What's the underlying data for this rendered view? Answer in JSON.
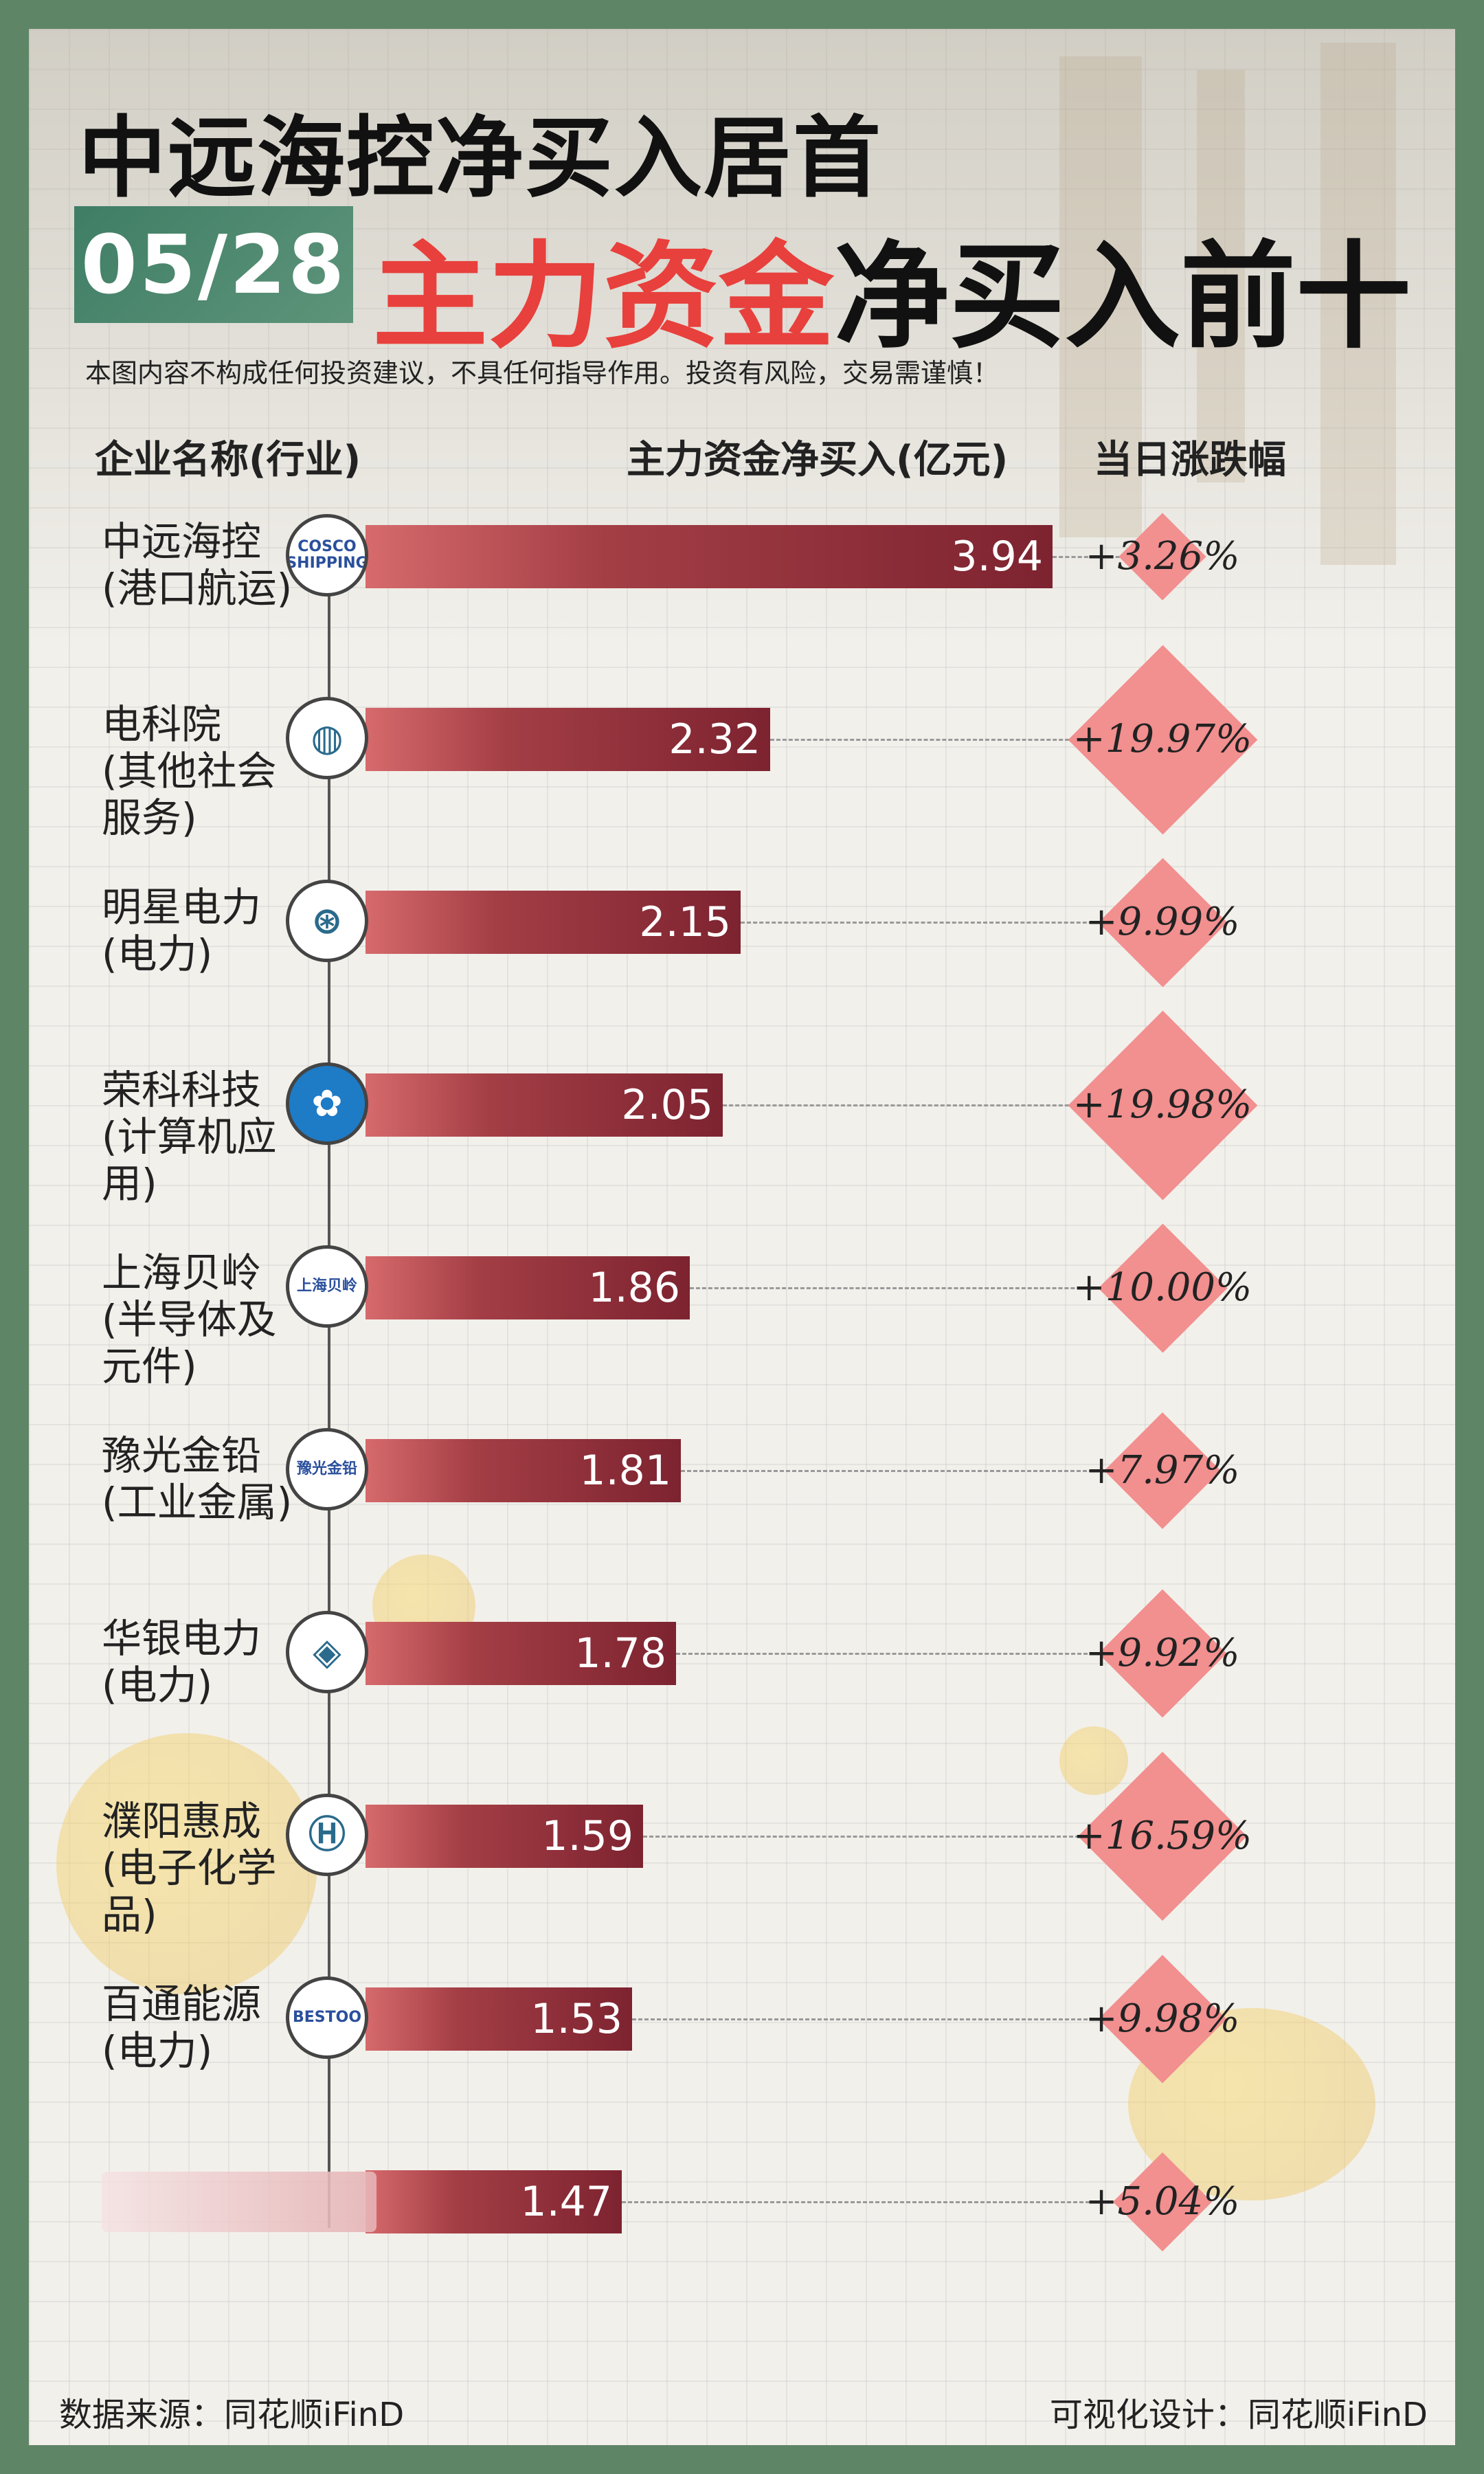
{
  "header": {
    "title_line1": "中远海控净买入居首",
    "date": "05/28",
    "title_line2_red": "主力资金",
    "title_line2_black": "净买入前十",
    "disclaimer": "本图内容不构成任何投资建议，不具任何指导作用。投资有风险，交易需谨慎！"
  },
  "columns": {
    "company": "企业名称(行业)",
    "net_buy": "主力资金净买入(亿元)",
    "change": "当日涨跌幅"
  },
  "colors": {
    "accent_red": "#e8403c",
    "bar_dark": "#7d2330",
    "diamond": "#f28f8f",
    "date_bg": "#3f7e65"
  },
  "chart_data": {
    "type": "bar",
    "orientation": "horizontal",
    "title": "主力资金净买入前十",
    "xlabel": "主力资金净买入(亿元)",
    "xlim": [
      0,
      3.94
    ],
    "categories": [
      "中远海控(港口航运)",
      "电科院(其他社会服务)",
      "明星电力(电力)",
      "荣科科技(计算机应用)",
      "上海贝岭(半导体及元件)",
      "豫光金铅(工业金属)",
      "华银电力(电力)",
      "濮阳惠成(电子化学品)",
      "百通能源(电力)",
      ""
    ],
    "values": [
      3.94,
      2.32,
      2.15,
      2.05,
      1.86,
      1.81,
      1.78,
      1.59,
      1.53,
      1.47
    ],
    "change_pct": [
      3.26,
      19.97,
      9.99,
      19.98,
      10.0,
      7.97,
      9.92,
      16.59,
      9.98,
      5.04
    ]
  },
  "rows": [
    {
      "name": "中远海控",
      "industry": "(港口航运)",
      "logo_icon": "cosco-shipping-logo-icon",
      "logo_text": "COSCO SHIPPING",
      "value": "3.94",
      "pct": "+3.26%"
    },
    {
      "name": "电科院",
      "industry": "(其他社会服务)",
      "logo_icon": "globe-logo-icon",
      "logo_text": "",
      "value": "2.32",
      "pct": "+19.97%"
    },
    {
      "name": "明星电力",
      "industry": "(电力)",
      "logo_icon": "mingxing-logo-icon",
      "logo_text": "",
      "value": "2.15",
      "pct": "+9.99%"
    },
    {
      "name": "荣科科技",
      "industry": "(计算机应用)",
      "logo_icon": "flower-logo-icon",
      "logo_text": "",
      "value": "2.05",
      "pct": "+19.98%"
    },
    {
      "name": "上海贝岭",
      "industry": "(半导体及元件)",
      "logo_icon": "belling-logo-icon",
      "logo_text": "上海贝岭",
      "value": "1.86",
      "pct": "+10.00%"
    },
    {
      "name": "豫光金铅",
      "industry": "(工业金属)",
      "logo_icon": "yuguang-logo-icon",
      "logo_text": "豫光金铅",
      "value": "1.81",
      "pct": "+7.97%"
    },
    {
      "name": "华银电力",
      "industry": "(电力)",
      "logo_icon": "huayin-logo-icon",
      "logo_text": "",
      "value": "1.78",
      "pct": "+9.92%"
    },
    {
      "name": "濮阳惠成",
      "industry": "(电子化学品)",
      "logo_icon": "h-circle-logo-icon",
      "logo_text": "",
      "value": "1.59",
      "pct": "+16.59%"
    },
    {
      "name": "百通能源",
      "industry": "(电力)",
      "logo_icon": "bestoo-logo-icon",
      "logo_text": "BESTOO",
      "value": "1.53",
      "pct": "+9.98%"
    },
    {
      "name": "",
      "industry": "",
      "logo_icon": "",
      "logo_text": "",
      "value": "1.47",
      "pct": "+5.04%"
    }
  ],
  "footer": {
    "source": "数据来源：同花顺iFinD",
    "design": "可视化设计：同花顺iFinD"
  }
}
